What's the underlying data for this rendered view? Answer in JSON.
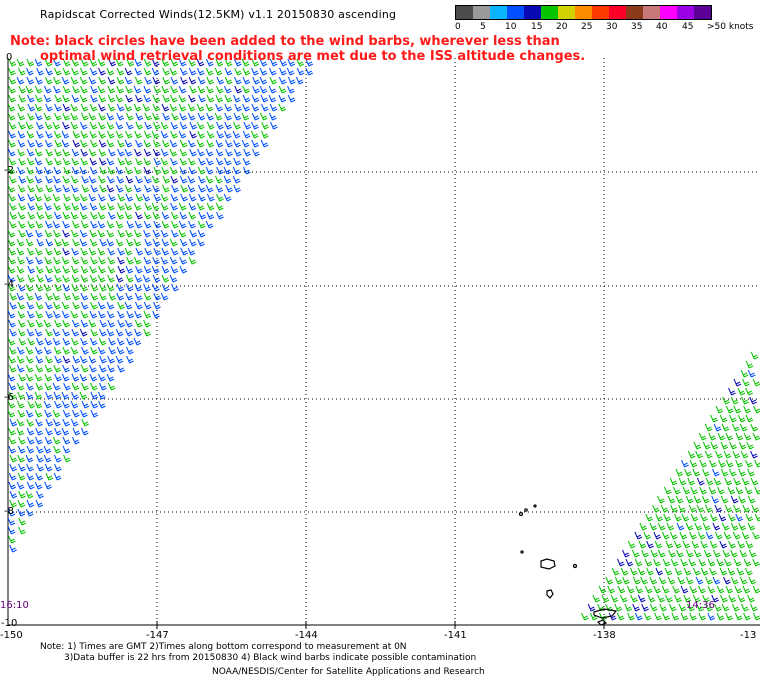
{
  "title": "Rapidscat Corrected Winds(12.5KM) v1.1 20150830 ascending",
  "note": {
    "line1": "Note: black circles have been added to the wind barbs, wherever less than",
    "line2": "optimal wind retrieval conditions are met due to the ISS altitude changes."
  },
  "colorbar": {
    "colors": [
      "#4d4d4d",
      "#9a9a9a",
      "#0ab4ff",
      "#0050ff",
      "#0a0ab4",
      "#08c400",
      "#d2d200",
      "#ff8c00",
      "#ff3a00",
      "#ff0028",
      "#8b3a1a",
      "#c87878",
      "#ff00ff",
      "#9b00e6",
      "#5a0096"
    ],
    "labels": [
      "0",
      "5",
      "10",
      "15",
      "20",
      "25",
      "30",
      "35",
      "40",
      "45",
      ">50 knots"
    ],
    "units": "knots"
  },
  "axes": {
    "x_labels": [
      "-150",
      "-147",
      "-144",
      "-141",
      "-138",
      "-13"
    ],
    "y_labels": [
      "0",
      "-2",
      "-4",
      "-6",
      "-8",
      "-10"
    ]
  },
  "time_labels": {
    "left": "16:10",
    "right": "14:36"
  },
  "footnote": {
    "line1": "Note: 1) Times are GMT 2)Times along bottom correspond to measurement at 0N",
    "line2": "3)Data buffer is 22 hrs from 20150830 4) Black wind barbs indicate possible contamination"
  },
  "credit": "NOAA/NESDIS/Center for Satellite Applications and Research",
  "swaths": [
    {
      "name": "western swath",
      "dominant_color": "#08c400",
      "secondary_color": "#0050ff",
      "wind_range_knots": "10-20"
    },
    {
      "name": "eastern swath",
      "dominant_color": "#08c400",
      "secondary_color": "#0a0ab4",
      "wind_range_knots": "15-20"
    }
  ],
  "land": {
    "name": "Marquesas Islands"
  }
}
